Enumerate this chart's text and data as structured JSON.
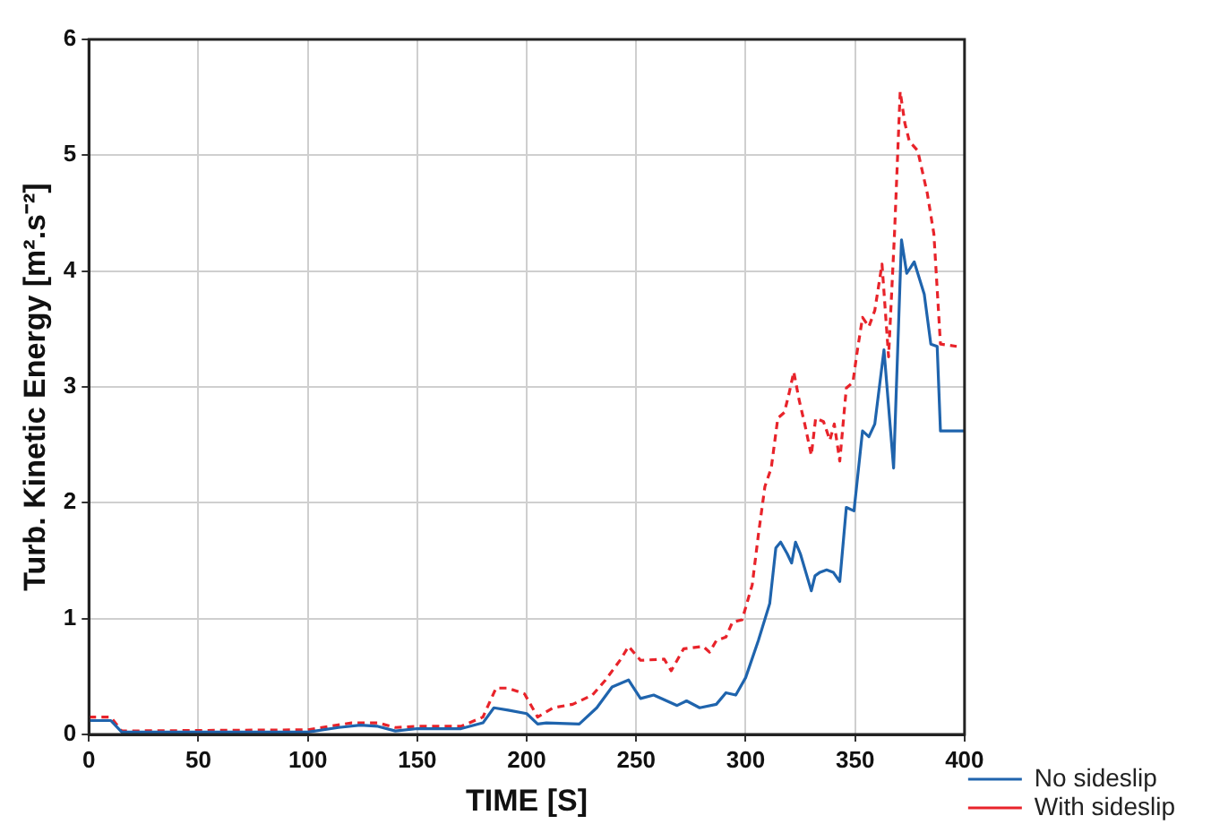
{
  "chart_data": {
    "type": "line",
    "xlabel": "TIME [S]",
    "ylabel": "Turb. Kinetic Energy [m².s⁻²]",
    "xlim": [
      0,
      400
    ],
    "xticks": [
      0,
      50,
      100,
      150,
      200,
      250,
      300,
      350,
      400
    ],
    "ylim": [
      0,
      6
    ],
    "yticks": [
      0,
      1,
      2,
      3,
      4,
      5,
      6
    ],
    "grid": true,
    "legend": "bottom right",
    "marker": "none",
    "series": [
      {
        "name": "No sideslip",
        "color": "#1f64ad",
        "line_style": "solid",
        "x": [
          0,
          10,
          15,
          100,
          114,
          124,
          132,
          140,
          150,
          170,
          180,
          185,
          191.5,
          200,
          205,
          209,
          224,
          232,
          239,
          246.5,
          252,
          258,
          268.7,
          273,
          279,
          286.6,
          291,
          295.5,
          300,
          305.8,
          311,
          313.8,
          316,
          319,
          321,
          322.8,
          325,
          330,
          331.7,
          334,
          337,
          340,
          343,
          346,
          349.5,
          353.4,
          356.3,
          359,
          363.2,
          367.6,
          371.2,
          373.6,
          377,
          381.6,
          384.6,
          387.5,
          389,
          400
        ],
        "values": [
          0.12,
          0.12,
          0.02,
          0.02,
          0.06,
          0.08,
          0.07,
          0.03,
          0.05,
          0.05,
          0.1,
          0.23,
          0.21,
          0.18,
          0.09,
          0.1,
          0.09,
          0.23,
          0.41,
          0.47,
          0.31,
          0.34,
          0.25,
          0.29,
          0.23,
          0.26,
          0.36,
          0.34,
          0.49,
          0.81,
          1.13,
          1.61,
          1.66,
          1.56,
          1.48,
          1.66,
          1.56,
          1.24,
          1.37,
          1.4,
          1.42,
          1.4,
          1.32,
          1.96,
          1.93,
          2.62,
          2.57,
          2.68,
          3.32,
          2.3,
          4.27,
          3.98,
          4.08,
          3.8,
          3.37,
          3.35,
          2.62,
          2.62
        ]
      },
      {
        "name": "With sideslip",
        "color": "#e8232a",
        "line_style": "dashed",
        "x": [
          0,
          10,
          15,
          100,
          120,
          132,
          140,
          150,
          170,
          180,
          186,
          191.5,
          199,
          205,
          212,
          221,
          230,
          236,
          243,
          246.5,
          252,
          262.8,
          266,
          271.7,
          280.6,
          283.5,
          286.6,
          291,
          294,
          298.4,
          303,
          305.8,
          308.8,
          311.7,
          314.7,
          317.7,
          319.8,
          322,
          324.4,
          327,
          330,
          332,
          335.6,
          338.5,
          340.5,
          343,
          346,
          349,
          351,
          353.4,
          356.3,
          359,
          362.3,
          365.3,
          368,
          370.6,
          372.7,
          374.8,
          378.6,
          383,
          386,
          389,
          396.4
        ],
        "values": [
          0.15,
          0.15,
          0.03,
          0.04,
          0.1,
          0.1,
          0.06,
          0.07,
          0.07,
          0.15,
          0.4,
          0.4,
          0.35,
          0.15,
          0.23,
          0.26,
          0.34,
          0.47,
          0.65,
          0.76,
          0.64,
          0.65,
          0.55,
          0.74,
          0.76,
          0.71,
          0.81,
          0.84,
          0.97,
          0.99,
          1.29,
          1.72,
          2.14,
          2.3,
          2.73,
          2.78,
          2.94,
          3.13,
          2.89,
          2.68,
          2.41,
          2.73,
          2.7,
          2.54,
          2.68,
          2.36,
          2.99,
          3.04,
          3.31,
          3.6,
          3.52,
          3.66,
          4.06,
          3.26,
          4.32,
          5.55,
          5.28,
          5.12,
          5.04,
          4.67,
          4.32,
          3.37,
          3.35
        ]
      }
    ]
  }
}
